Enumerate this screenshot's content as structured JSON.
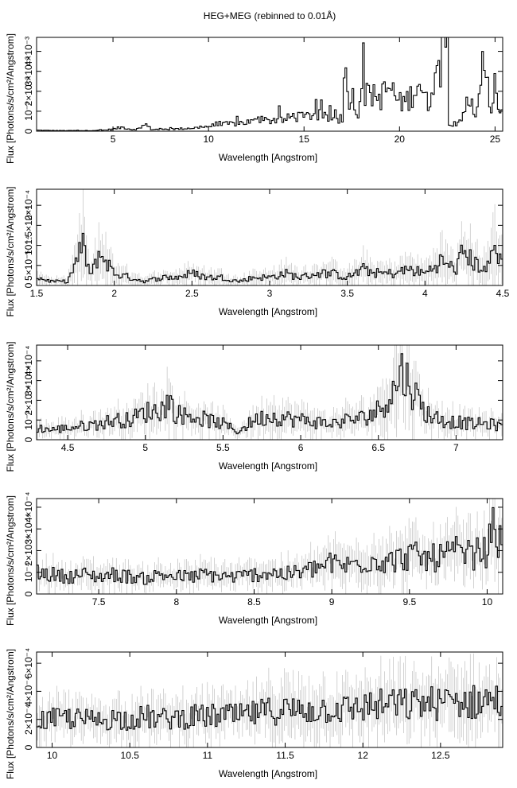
{
  "title": "HEG+MEG (rebinned to 0.01Å)",
  "chart_data": [
    {
      "type": "line",
      "title": "",
      "xlabel": "Wavelength [Angstrom]",
      "ylabel": "Flux [Photons/s/cm²/Angstrom]",
      "xlim": [
        1.0,
        25.4
      ],
      "ylim": [
        0,
        0.0047
      ],
      "xticks": [
        5,
        10,
        15,
        20,
        25
      ],
      "xticklabels": [
        "5",
        "10",
        "15",
        "20",
        "25"
      ],
      "yticks": [
        0,
        0.001,
        0.002,
        0.003,
        0.004
      ],
      "yticklabels": [
        "0",
        "10⁻³",
        "2×10⁻³",
        "3×10⁻³",
        "4×10⁻³"
      ],
      "series": [
        {
          "x": [
            1.0,
            1.5,
            2.0,
            2.5,
            3.0,
            3.5,
            4.0,
            4.5,
            5.0,
            5.5,
            6.0,
            6.5,
            6.7,
            7.0,
            7.5,
            8.0,
            8.5,
            9.0,
            9.5,
            10.0,
            10.5,
            11.0,
            11.5,
            12.0,
            12.5,
            13.0,
            13.5,
            14.0,
            14.5,
            15.0,
            15.5,
            16.0,
            16.5,
            17.0,
            17.1,
            17.5,
            17.8,
            18.0,
            18.5,
            19.0,
            19.5,
            20.0,
            20.5,
            21.0,
            21.5,
            21.8,
            22.0,
            22.1,
            22.3,
            22.5,
            22.6,
            23.0,
            23.5,
            24.0,
            24.5,
            24.8,
            25.0,
            25.4
          ],
          "y": [
            5e-05,
            4e-05,
            3e-05,
            3e-05,
            3e-05,
            3e-05,
            4e-05,
            5e-05,
            0.0001,
            0.0002,
            8e-05,
            0.00015,
            0.00035,
            0.0001,
            8e-05,
            0.0001,
            0.00012,
            0.00015,
            0.00018,
            0.00025,
            0.0003,
            0.00035,
            0.0004,
            0.00045,
            0.0005,
            0.00048,
            0.0006,
            0.00055,
            0.0008,
            0.00065,
            0.0009,
            0.0007,
            0.0006,
            0.0006,
            0.0016,
            0.0019,
            0.00085,
            0.0023,
            0.0014,
            0.0017,
            0.0022,
            0.0014,
            0.0016,
            0.0026,
            0.0012,
            0.0031,
            0.0025,
            0.0034,
            0.0039,
            0.0046,
            0.0005,
            0.0003,
            0.0013,
            0.0009,
            0.0027,
            0.0011,
            0.0014,
            0.0012
          ]
        }
      ]
    },
    {
      "type": "line",
      "title": "",
      "xlabel": "Wavelength [Angstrom]",
      "ylabel": "Flux [Photons/s/cm²/Angstrom]",
      "xlim": [
        1.5,
        4.5
      ],
      "ylim": [
        0,
        0.00024
      ],
      "xticks": [
        1.5,
        2,
        2.5,
        3,
        3.5,
        4,
        4.5
      ],
      "xticklabels": [
        "1.5",
        "2",
        "2.5",
        "3",
        "3.5",
        "4",
        "4.5"
      ],
      "yticks": [
        0,
        5e-05,
        0.0001,
        0.00015,
        0.0002
      ],
      "yticklabels": [
        "0",
        "5×10⁻⁵",
        "10⁻⁴",
        "1.5×10⁻⁴",
        "2×10⁻⁴"
      ],
      "series": [
        {
          "x": [
            1.5,
            1.6,
            1.7,
            1.8,
            1.85,
            1.9,
            1.95,
            2.0,
            2.1,
            2.2,
            2.3,
            2.4,
            2.5,
            2.6,
            2.7,
            2.8,
            2.9,
            3.0,
            3.1,
            3.2,
            3.3,
            3.4,
            3.5,
            3.6,
            3.7,
            3.8,
            3.9,
            4.0,
            4.1,
            4.2,
            4.25,
            4.3,
            4.4,
            4.45,
            4.5
          ],
          "y": [
            2e-05,
            1e-05,
            1e-05,
            0.0001,
            2e-05,
            8e-05,
            6e-05,
            3e-05,
            2e-05,
            1e-05,
            2e-05,
            2e-05,
            3e-05,
            2e-05,
            2e-05,
            1e-05,
            2e-05,
            2e-05,
            3e-05,
            2e-05,
            3e-05,
            3e-05,
            2e-05,
            4e-05,
            3e-05,
            3e-05,
            4e-05,
            3e-05,
            6e-05,
            4e-05,
            9e-05,
            6e-05,
            4e-05,
            0.0001,
            5e-05
          ]
        }
      ]
    },
    {
      "type": "line",
      "title": "",
      "xlabel": "Wavelength [Angstrom]",
      "ylabel": "Flux [Photons/s/cm²/Angstrom]",
      "xlim": [
        4.3,
        7.3
      ],
      "ylim": [
        0,
        0.00048
      ],
      "xticks": [
        4.5,
        5,
        5.5,
        6,
        6.5,
        7
      ],
      "xticklabels": [
        "4.5",
        "5",
        "5.5",
        "6",
        "6.5",
        "7"
      ],
      "yticks": [
        0,
        0.0001,
        0.0002,
        0.0003,
        0.0004
      ],
      "yticklabels": [
        "0",
        "10⁻⁴",
        "2×10⁻⁴",
        "3×10⁻⁴",
        "4×10⁻⁴"
      ],
      "series": [
        {
          "x": [
            4.3,
            4.4,
            4.5,
            4.6,
            4.7,
            4.8,
            4.9,
            5.0,
            5.1,
            5.15,
            5.2,
            5.3,
            5.4,
            5.5,
            5.6,
            5.7,
            5.8,
            5.9,
            6.0,
            6.1,
            6.2,
            6.3,
            6.4,
            6.5,
            6.6,
            6.65,
            6.7,
            6.8,
            6.9,
            7.0,
            7.1,
            7.2,
            7.3
          ],
          "y": [
            6e-05,
            5e-05,
            6e-05,
            7e-05,
            8e-05,
            0.0001,
            0.0001,
            0.00014,
            0.00015,
            0.0002,
            0.00013,
            0.00012,
            0.0001,
            8e-05,
            4e-05,
            0.0001,
            0.00012,
            0.00011,
            0.0001,
            9e-05,
            8e-05,
            0.0001,
            0.00011,
            0.00015,
            0.00025,
            0.00035,
            0.00028,
            0.00014,
            0.0001,
            9e-05,
            8e-05,
            8e-05,
            7e-05
          ]
        }
      ]
    },
    {
      "type": "line",
      "title": "",
      "xlabel": "Wavelength [Angstrom]",
      "ylabel": "Flux [Photons/s/cm²/Angstrom]",
      "xlim": [
        7.1,
        10.1
      ],
      "ylim": [
        0,
        0.00044
      ],
      "xticks": [
        7.5,
        8,
        8.5,
        9,
        9.5,
        10
      ],
      "xticklabels": [
        "7.5",
        "8",
        "8.5",
        "9",
        "9.5",
        "10"
      ],
      "yticks": [
        0,
        0.0001,
        0.0002,
        0.0003,
        0.0004
      ],
      "yticklabels": [
        "0",
        "10⁻⁴",
        "2×10⁻⁴",
        "3×10⁻⁴",
        "4×10⁻⁴"
      ],
      "series": [
        {
          "x": [
            7.1,
            7.2,
            7.3,
            7.4,
            7.5,
            7.6,
            7.7,
            7.8,
            7.9,
            8.0,
            8.1,
            8.2,
            8.3,
            8.4,
            8.5,
            8.6,
            8.7,
            8.8,
            8.9,
            9.0,
            9.1,
            9.2,
            9.3,
            9.4,
            9.5,
            9.6,
            9.7,
            9.8,
            9.9,
            10.0,
            10.05,
            10.1
          ],
          "y": [
            0.0001,
            9e-05,
            8e-05,
            9e-05,
            8e-05,
            9e-05,
            8e-05,
            7e-05,
            9e-05,
            8e-05,
            8e-05,
            9e-05,
            8e-05,
            8e-05,
            9e-05,
            0.0001,
            9e-05,
            0.0001,
            0.00012,
            0.00014,
            0.00013,
            0.00015,
            0.00016,
            0.00015,
            0.00018,
            0.00016,
            0.00017,
            0.00019,
            0.00018,
            0.0002,
            0.00032,
            0.00018
          ]
        }
      ]
    },
    {
      "type": "line",
      "title": "",
      "xlabel": "Wavelength [Angstrom]",
      "ylabel": "Flux [Photons/s/cm²/Angstrom]",
      "xlim": [
        9.9,
        12.9
      ],
      "ylim": [
        0,
        0.00068
      ],
      "xticks": [
        10,
        10.5,
        11,
        11.5,
        12,
        12.5
      ],
      "xticklabels": [
        "10",
        "10.5",
        "11",
        "11.5",
        "12",
        "12.5"
      ],
      "yticks": [
        0,
        0.0002,
        0.0004,
        0.0006
      ],
      "yticklabels": [
        "0",
        "2×10⁻⁴",
        "4×10⁻⁴",
        "6×10⁻⁴"
      ],
      "series": [
        {
          "x": [
            9.9,
            10.0,
            10.1,
            10.2,
            10.3,
            10.4,
            10.5,
            10.6,
            10.7,
            10.8,
            10.9,
            11.0,
            11.1,
            11.2,
            11.3,
            11.4,
            11.5,
            11.6,
            11.7,
            11.8,
            11.9,
            12.0,
            12.1,
            12.2,
            12.3,
            12.4,
            12.5,
            12.6,
            12.7,
            12.8,
            12.9
          ],
          "y": [
            0.00019,
            0.0002,
            0.00021,
            0.0002,
            0.00019,
            0.00021,
            0.0002,
            0.00022,
            0.0002,
            0.00021,
            0.00022,
            0.00022,
            0.00023,
            0.00022,
            0.00024,
            0.00026,
            0.00027,
            0.00026,
            0.00027,
            0.00028,
            0.00027,
            0.00029,
            0.0003,
            0.00031,
            0.0003,
            0.00032,
            0.00031,
            0.00033,
            0.00032,
            0.00034,
            0.00033
          ]
        }
      ]
    }
  ]
}
